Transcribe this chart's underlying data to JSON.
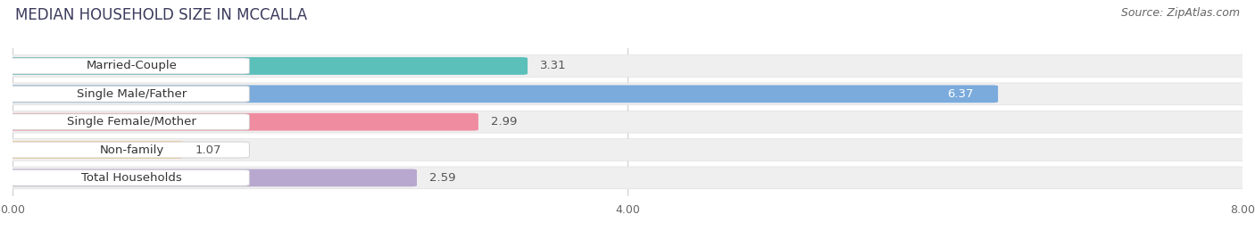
{
  "title": "MEDIAN HOUSEHOLD SIZE IN MCCALLA",
  "source": "Source: ZipAtlas.com",
  "categories": [
    "Married-Couple",
    "Single Male/Father",
    "Single Female/Mother",
    "Non-family",
    "Total Households"
  ],
  "values": [
    3.31,
    6.37,
    2.99,
    1.07,
    2.59
  ],
  "bar_colors": [
    "#5bbfba",
    "#7aabdc",
    "#f08ca0",
    "#f5c98a",
    "#b8a8d0"
  ],
  "value_inside": [
    false,
    true,
    false,
    false,
    false
  ],
  "xlim": [
    0,
    8.0
  ],
  "xticks": [
    0.0,
    4.0,
    8.0
  ],
  "xtick_labels": [
    "0.00",
    "4.00",
    "8.00"
  ],
  "background_color": "#f5f5f5",
  "bar_row_bg": "#ececec",
  "title_fontsize": 12,
  "source_fontsize": 9,
  "label_fontsize": 9.5,
  "value_fontsize": 9.5,
  "tick_fontsize": 9,
  "bar_height": 0.55,
  "figsize": [
    14.06,
    2.68
  ],
  "dpi": 100
}
